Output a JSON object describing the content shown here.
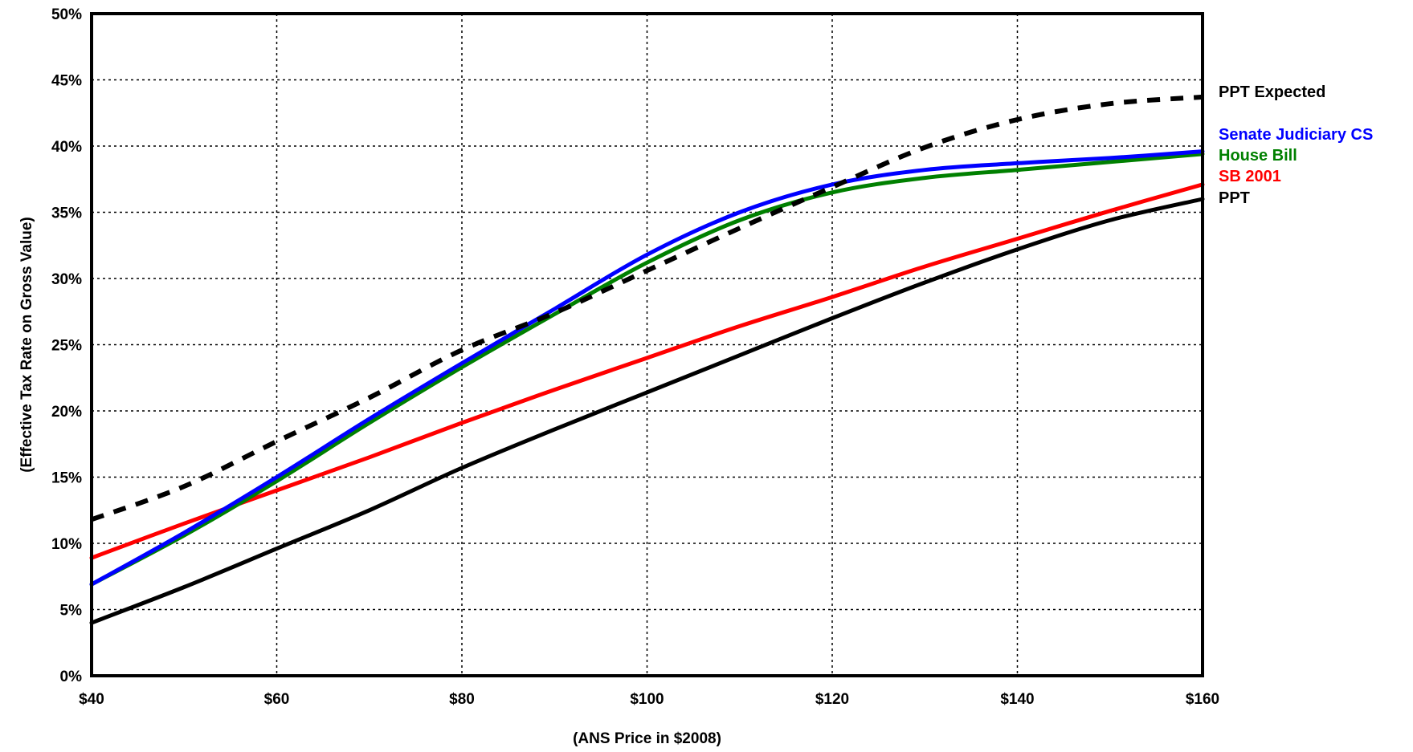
{
  "chart_data": {
    "type": "line",
    "xlabel": "(ANS Price in $2008)",
    "ylabel": "(Effective Tax Rate on Gross Value)",
    "xlim": [
      40,
      160
    ],
    "ylim": [
      0,
      50
    ],
    "grid": true,
    "legend_position": "right",
    "x_ticks": [
      40,
      60,
      80,
      100,
      120,
      140,
      160
    ],
    "x_tick_labels": [
      "$40",
      "$60",
      "$80",
      "$100",
      "$120",
      "$140",
      "$160"
    ],
    "y_ticks": [
      0,
      5,
      10,
      15,
      20,
      25,
      30,
      35,
      40,
      45,
      50
    ],
    "y_tick_labels": [
      "0%",
      "5%",
      "10%",
      "15%",
      "20%",
      "25%",
      "30%",
      "35%",
      "40%",
      "45%",
      "50%"
    ],
    "x": [
      40,
      50,
      60,
      70,
      80,
      90,
      100,
      110,
      120,
      130,
      140,
      150,
      160
    ],
    "series": [
      {
        "name": "PPT Expected",
        "color": "#000000",
        "dashed": true,
        "values": [
          11.8,
          14.3,
          17.7,
          21.0,
          24.6,
          27.4,
          30.6,
          33.8,
          36.9,
          39.9,
          42.0,
          43.2,
          43.7
        ]
      },
      {
        "name": "Senate Judiciary CS",
        "color": "#0000ff",
        "dashed": false,
        "values": [
          6.9,
          10.8,
          15.0,
          19.4,
          23.6,
          27.7,
          31.8,
          35.0,
          37.1,
          38.2,
          38.7,
          39.1,
          39.6
        ]
      },
      {
        "name": "House Bill",
        "color": "#008000",
        "dashed": false,
        "values": [
          6.9,
          10.6,
          14.7,
          19.1,
          23.3,
          27.3,
          31.2,
          34.4,
          36.5,
          37.6,
          38.2,
          38.8,
          39.4
        ]
      },
      {
        "name": "SB 2001",
        "color": "#ff0000",
        "dashed": false,
        "values": [
          8.9,
          11.5,
          14.0,
          16.5,
          19.1,
          21.6,
          24.0,
          26.4,
          28.6,
          30.9,
          33.0,
          35.1,
          37.1
        ]
      },
      {
        "name": "PPT",
        "color": "#000000",
        "dashed": false,
        "values": [
          4.0,
          6.7,
          9.6,
          12.5,
          15.7,
          18.6,
          21.4,
          24.2,
          27.0,
          29.7,
          32.2,
          34.4,
          36.0
        ]
      }
    ],
    "legend": [
      {
        "label": "PPT Expected",
        "color": "#000000"
      },
      {
        "label": "Senate Judiciary CS",
        "color": "#0000ff"
      },
      {
        "label": "House Bill",
        "color": "#008000"
      },
      {
        "label": "SB 2001",
        "color": "#ff0000"
      },
      {
        "label": "PPT",
        "color": "#000000"
      }
    ]
  }
}
